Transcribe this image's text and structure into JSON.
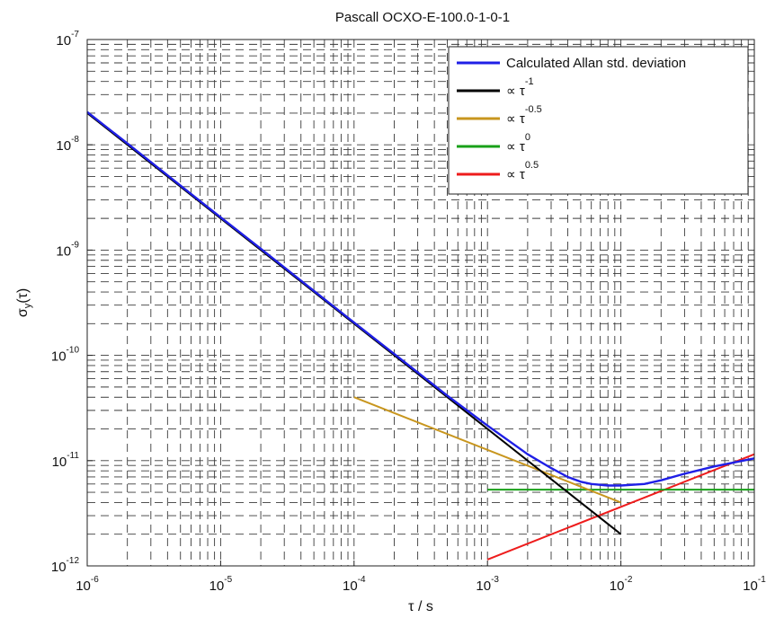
{
  "chart_data": {
    "type": "line",
    "title": "Pascall OCXO-E-100.0-1-0-1",
    "xlabel": "τ / s",
    "ylabel": "σ_y(τ)",
    "x_scale": "log",
    "y_scale": "log",
    "xlim": [
      1e-06,
      0.1
    ],
    "ylim": [
      1e-12,
      1e-07
    ],
    "grid": "dashed, major and minor",
    "legend_position": "top-right",
    "x_ticks": [
      {
        "base": "10",
        "exp": "-6"
      },
      {
        "base": "10",
        "exp": "-5"
      },
      {
        "base": "10",
        "exp": "-4"
      },
      {
        "base": "10",
        "exp": "-3"
      },
      {
        "base": "10",
        "exp": "-2"
      },
      {
        "base": "10",
        "exp": "-1"
      }
    ],
    "y_ticks": [
      {
        "base": "10",
        "exp": "-12"
      },
      {
        "base": "10",
        "exp": "-11"
      },
      {
        "base": "10",
        "exp": "-10"
      },
      {
        "base": "10",
        "exp": "-9"
      },
      {
        "base": "10",
        "exp": "-8"
      },
      {
        "base": "10",
        "exp": "-7"
      }
    ],
    "series": [
      {
        "name": "Calculated Allan std. deviation",
        "color": "#1f1fe6",
        "x": [
          1e-06,
          2e-06,
          5e-06,
          1e-05,
          2e-05,
          5e-05,
          0.0001,
          0.0002,
          0.0005,
          0.001,
          0.002,
          0.003,
          0.004,
          0.005,
          0.006,
          0.008,
          0.01,
          0.015,
          0.02,
          0.03,
          0.05,
          0.1
        ],
        "y": [
          2.05e-08,
          1.03e-08,
          4.1e-09,
          2.05e-09,
          1.03e-09,
          4.1e-10,
          2.05e-10,
          1.03e-10,
          4.15e-11,
          2.15e-11,
          1.15e-11,
          8.5e-12,
          7e-12,
          6.3e-12,
          6e-12,
          5.8e-12,
          5.8e-12,
          6e-12,
          6.5e-12,
          7.5e-12,
          8.8e-12,
          1.05e-11
        ]
      },
      {
        "name": "∝ τ",
        "exponent": "-1",
        "color": "#000000",
        "x": [
          1e-06,
          0.01
        ],
        "y": [
          2e-08,
          2e-12
        ]
      },
      {
        "name": "∝ τ",
        "exponent": "-0.5",
        "color": "#c8961e",
        "x": [
          0.0001,
          0.01
        ],
        "y": [
          4e-11,
          4e-12
        ]
      },
      {
        "name": "∝ τ",
        "exponent": "0",
        "color": "#18a018",
        "x": [
          0.001,
          0.1
        ],
        "y": [
          5.3e-12,
          5.3e-12
        ]
      },
      {
        "name": "∝ τ",
        "exponent": "0.5",
        "color": "#ee1c1c",
        "x": [
          0.001,
          0.1
        ],
        "y": [
          1.15e-12,
          1.15e-11
        ]
      }
    ]
  }
}
